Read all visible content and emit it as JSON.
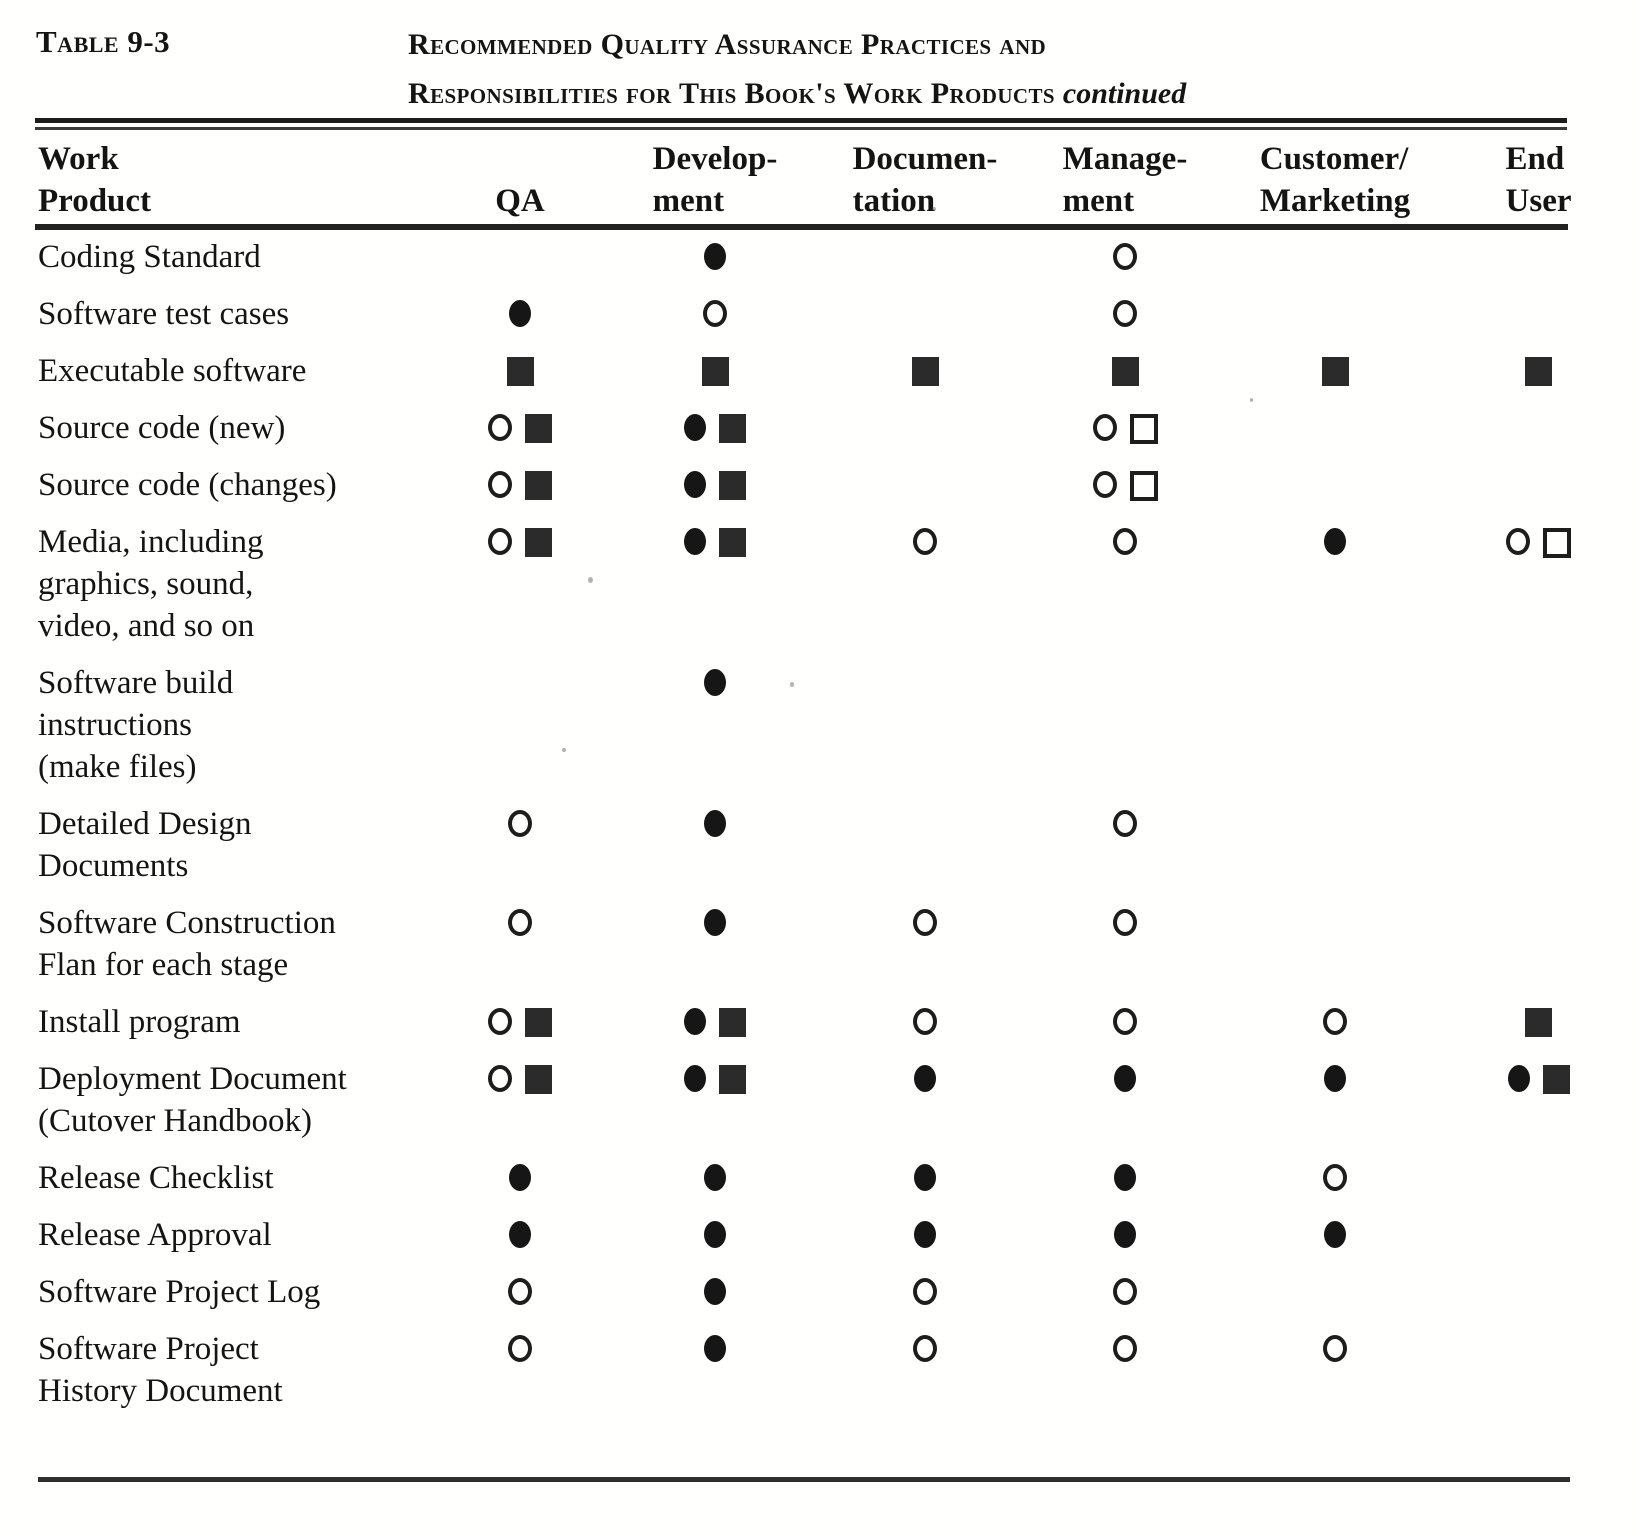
{
  "document": {
    "table_label": "Table 9-3",
    "title_line1": "Recommended Quality Assurance Practices and",
    "title_line2": "Responsibilities for This Book's Work Products",
    "title_suffix": "continued"
  },
  "table": {
    "columns": [
      {
        "id": "work_product",
        "label": "Work\nProduct"
      },
      {
        "id": "qa",
        "label": "QA"
      },
      {
        "id": "development",
        "label": "Develop-\nment"
      },
      {
        "id": "documentation",
        "label": "Documen-\ntation"
      },
      {
        "id": "management",
        "label": "Manage-\nment"
      },
      {
        "id": "customer_marketing",
        "label": "Customer/\nMarketing"
      },
      {
        "id": "end_user",
        "label": "End\nUser"
      }
    ],
    "symbols": [
      "filled-circle",
      "open-circle",
      "filled-square",
      "open-square"
    ],
    "rows": [
      {
        "label": "Coding Standard",
        "cells": [
          [],
          [
            "filled-circle"
          ],
          [],
          [
            "open-circle"
          ],
          [],
          []
        ]
      },
      {
        "label": "Software test cases",
        "cells": [
          [
            "filled-circle"
          ],
          [
            "open-circle"
          ],
          [],
          [
            "open-circle"
          ],
          [],
          []
        ]
      },
      {
        "label": "Executable software",
        "cells": [
          [
            "filled-square"
          ],
          [
            "filled-square"
          ],
          [
            "filled-square"
          ],
          [
            "filled-square"
          ],
          [
            "filled-square"
          ],
          [
            "filled-square"
          ]
        ]
      },
      {
        "label": "Source code (new)",
        "cells": [
          [
            "open-circle",
            "filled-square"
          ],
          [
            "filled-circle",
            "filled-square"
          ],
          [],
          [
            "open-circle",
            "open-square"
          ],
          [],
          []
        ]
      },
      {
        "label": "Source code (changes)",
        "cells": [
          [
            "open-circle",
            "filled-square"
          ],
          [
            "filled-circle",
            "filled-square"
          ],
          [],
          [
            "open-circle",
            "open-square"
          ],
          [],
          []
        ]
      },
      {
        "label": "Media, including\ngraphics, sound,\nvideo, and so on",
        "cells": [
          [
            "open-circle",
            "filled-square"
          ],
          [
            "filled-circle",
            "filled-square"
          ],
          [
            "open-circle"
          ],
          [
            "open-circle"
          ],
          [
            "filled-circle"
          ],
          [
            "open-circle",
            "open-square"
          ]
        ]
      },
      {
        "label": "Software build\ninstructions\n(make files)",
        "cells": [
          [],
          [
            "filled-circle"
          ],
          [],
          [],
          [],
          []
        ]
      },
      {
        "label": "Detailed Design\nDocuments",
        "cells": [
          [
            "open-circle"
          ],
          [
            "filled-circle"
          ],
          [],
          [
            "open-circle"
          ],
          [],
          []
        ]
      },
      {
        "label": "Software Construction\nFlan for each stage",
        "cells": [
          [
            "open-circle"
          ],
          [
            "filled-circle"
          ],
          [
            "open-circle"
          ],
          [
            "open-circle"
          ],
          [],
          []
        ]
      },
      {
        "label": "Install program",
        "cells": [
          [
            "open-circle",
            "filled-square"
          ],
          [
            "filled-circle",
            "filled-square"
          ],
          [
            "open-circle"
          ],
          [
            "open-circle"
          ],
          [
            "open-circle"
          ],
          [
            "filled-square"
          ]
        ]
      },
      {
        "label": "Deployment Document\n(Cutover Handbook)",
        "cells": [
          [
            "open-circle",
            "filled-square"
          ],
          [
            "filled-circle",
            "filled-square"
          ],
          [
            "filled-circle"
          ],
          [
            "filled-circle"
          ],
          [
            "filled-circle"
          ],
          [
            "filled-circle",
            "filled-square"
          ]
        ]
      },
      {
        "label": "Release Checklist",
        "cells": [
          [
            "filled-circle"
          ],
          [
            "filled-circle"
          ],
          [
            "filled-circle"
          ],
          [
            "filled-circle"
          ],
          [
            "open-circle"
          ],
          []
        ]
      },
      {
        "label": "Release Approval",
        "cells": [
          [
            "filled-circle"
          ],
          [
            "filled-circle"
          ],
          [
            "filled-circle"
          ],
          [
            "filled-circle"
          ],
          [
            "filled-circle"
          ],
          []
        ]
      },
      {
        "label": "Software Project Log",
        "cells": [
          [
            "open-circle"
          ],
          [
            "filled-circle"
          ],
          [
            "open-circle"
          ],
          [
            "open-circle"
          ],
          [],
          []
        ]
      },
      {
        "label": "Software Project\nHistory Document",
        "cells": [
          [
            "open-circle"
          ],
          [
            "filled-circle"
          ],
          [
            "open-circle"
          ],
          [
            "open-circle"
          ],
          [
            "open-circle"
          ],
          []
        ]
      }
    ]
  }
}
